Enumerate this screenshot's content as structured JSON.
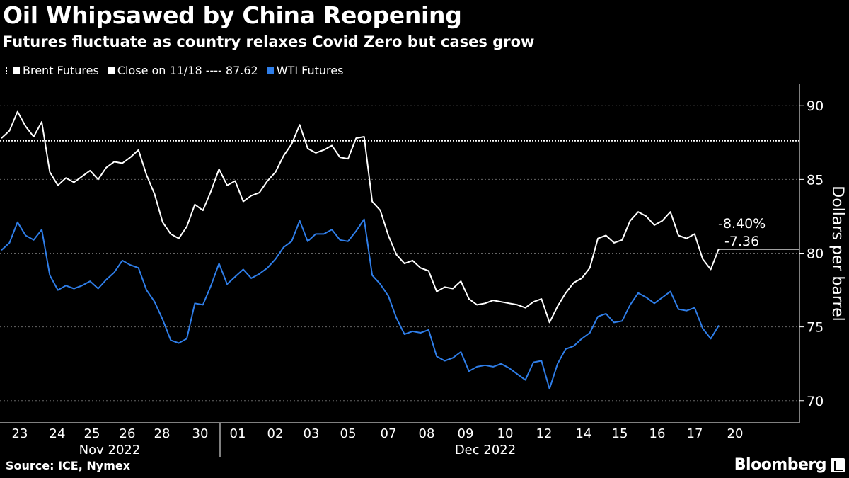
{
  "chart_data": {
    "type": "line",
    "title": "Oil Whipsawed by China Reopening",
    "subtitle": "Futures fluctuate as country relaxes Covid Zero but cases grow",
    "ylabel": "Dollars per barrel",
    "ylim": [
      68.5,
      91.5
    ],
    "yticks": [
      70,
      75,
      80,
      85,
      90
    ],
    "xticks": [
      "23",
      "24",
      "25",
      "26",
      "28",
      "30",
      "01",
      "02",
      "03",
      "05",
      "07",
      "08",
      "09",
      "10",
      "12",
      "14",
      "15",
      "16",
      "17",
      "20"
    ],
    "months": [
      "Nov 2022",
      "Dec 2022"
    ],
    "legend": {
      "brent": "Brent Futures",
      "close": "Close on 11/18 ---- 87.62",
      "wti": "WTI Futures"
    },
    "close_value": 87.62,
    "annotations": [
      "-8.40%",
      "-7.36"
    ],
    "last_value": 80.26,
    "series": [
      {
        "name": "Brent Futures",
        "color": "#ffffff",
        "values": [
          87.8,
          88.3,
          89.6,
          88.6,
          87.9,
          88.9,
          85.5,
          84.6,
          85.1,
          84.8,
          85.2,
          85.6,
          85.0,
          85.8,
          86.2,
          86.1,
          86.5,
          87.0,
          85.3,
          84.0,
          82.1,
          81.3,
          81.0,
          81.8,
          83.3,
          82.9,
          84.2,
          85.7,
          84.6,
          84.9,
          83.5,
          83.9,
          84.1,
          84.9,
          85.5,
          86.6,
          87.4,
          88.7,
          87.1,
          86.8,
          87.0,
          87.3,
          86.5,
          86.4,
          87.8,
          87.9,
          83.5,
          82.9,
          81.2,
          79.9,
          79.3,
          79.5,
          79.0,
          78.8,
          77.4,
          77.7,
          77.6,
          78.1,
          76.9,
          76.5,
          76.6,
          76.8,
          76.7,
          76.6,
          76.5,
          76.3,
          76.7,
          76.9,
          75.3,
          76.4,
          77.3,
          78.0,
          78.3,
          79.0,
          81.0,
          81.2,
          80.7,
          80.9,
          82.2,
          82.8,
          82.5,
          81.9,
          82.2,
          82.8,
          81.2,
          81.0,
          81.3,
          79.6,
          78.9,
          80.3
        ]
      },
      {
        "name": "WTI Futures",
        "color": "#2f7ee9",
        "values": [
          80.2,
          80.7,
          82.1,
          81.2,
          80.9,
          81.6,
          78.5,
          77.5,
          77.8,
          77.6,
          77.8,
          78.1,
          77.6,
          78.2,
          78.7,
          79.5,
          79.2,
          79.0,
          77.5,
          76.7,
          75.5,
          74.1,
          73.9,
          74.2,
          76.6,
          76.5,
          77.8,
          79.3,
          77.9,
          78.4,
          78.9,
          78.3,
          78.6,
          79.0,
          79.6,
          80.4,
          80.8,
          82.2,
          80.8,
          81.3,
          81.3,
          81.6,
          80.9,
          80.8,
          81.5,
          82.3,
          78.5,
          77.9,
          77.1,
          75.6,
          74.5,
          74.7,
          74.6,
          74.8,
          73.0,
          72.7,
          72.9,
          73.3,
          72.0,
          72.3,
          72.4,
          72.3,
          72.5,
          72.2,
          71.8,
          71.4,
          72.6,
          72.7,
          70.8,
          72.5,
          73.5,
          73.7,
          74.2,
          74.6,
          75.7,
          75.9,
          75.3,
          75.4,
          76.5,
          77.3,
          77.0,
          76.6,
          77.0,
          77.4,
          76.2,
          76.1,
          76.3,
          74.9,
          74.2,
          75.1
        ]
      }
    ]
  }
}
